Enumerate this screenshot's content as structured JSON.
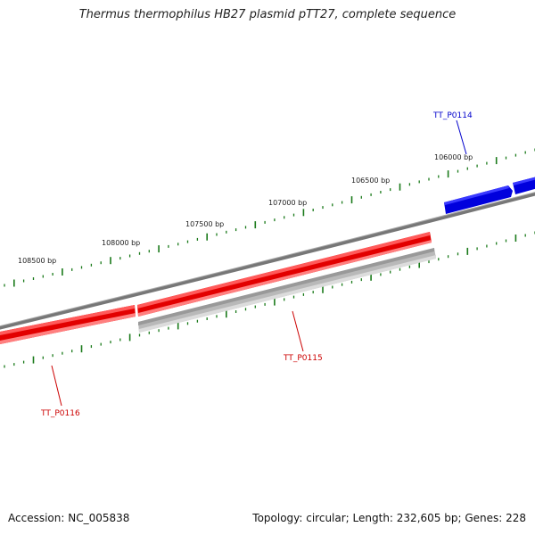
{
  "title": "Thermus thermophilus HB27 plasmid pTT27, complete sequence",
  "footer": {
    "accession": "Accession: NC_005838",
    "summary": "Topology: circular; Length: 232,605 bp; Genes: 228"
  },
  "colors": {
    "backbone": "#7a7a7a",
    "forward_gene": "#e00000",
    "reverse_gene": "#0000e0",
    "hit": "#b8b8b8",
    "ticks": "#1a7a1a"
  },
  "ruler_labels": [
    "106000 bp",
    "106500 bp",
    "107000 bp",
    "107500 bp",
    "108000 bp",
    "108500 bp"
  ],
  "genes": [
    {
      "id": "TT_P0114",
      "strand": "reverse",
      "color": "#0000cc"
    },
    {
      "id": "TT_P0115",
      "strand": "forward",
      "color": "#cc0000"
    },
    {
      "id": "TT_P0116",
      "strand": "forward",
      "color": "#cc0000"
    }
  ]
}
